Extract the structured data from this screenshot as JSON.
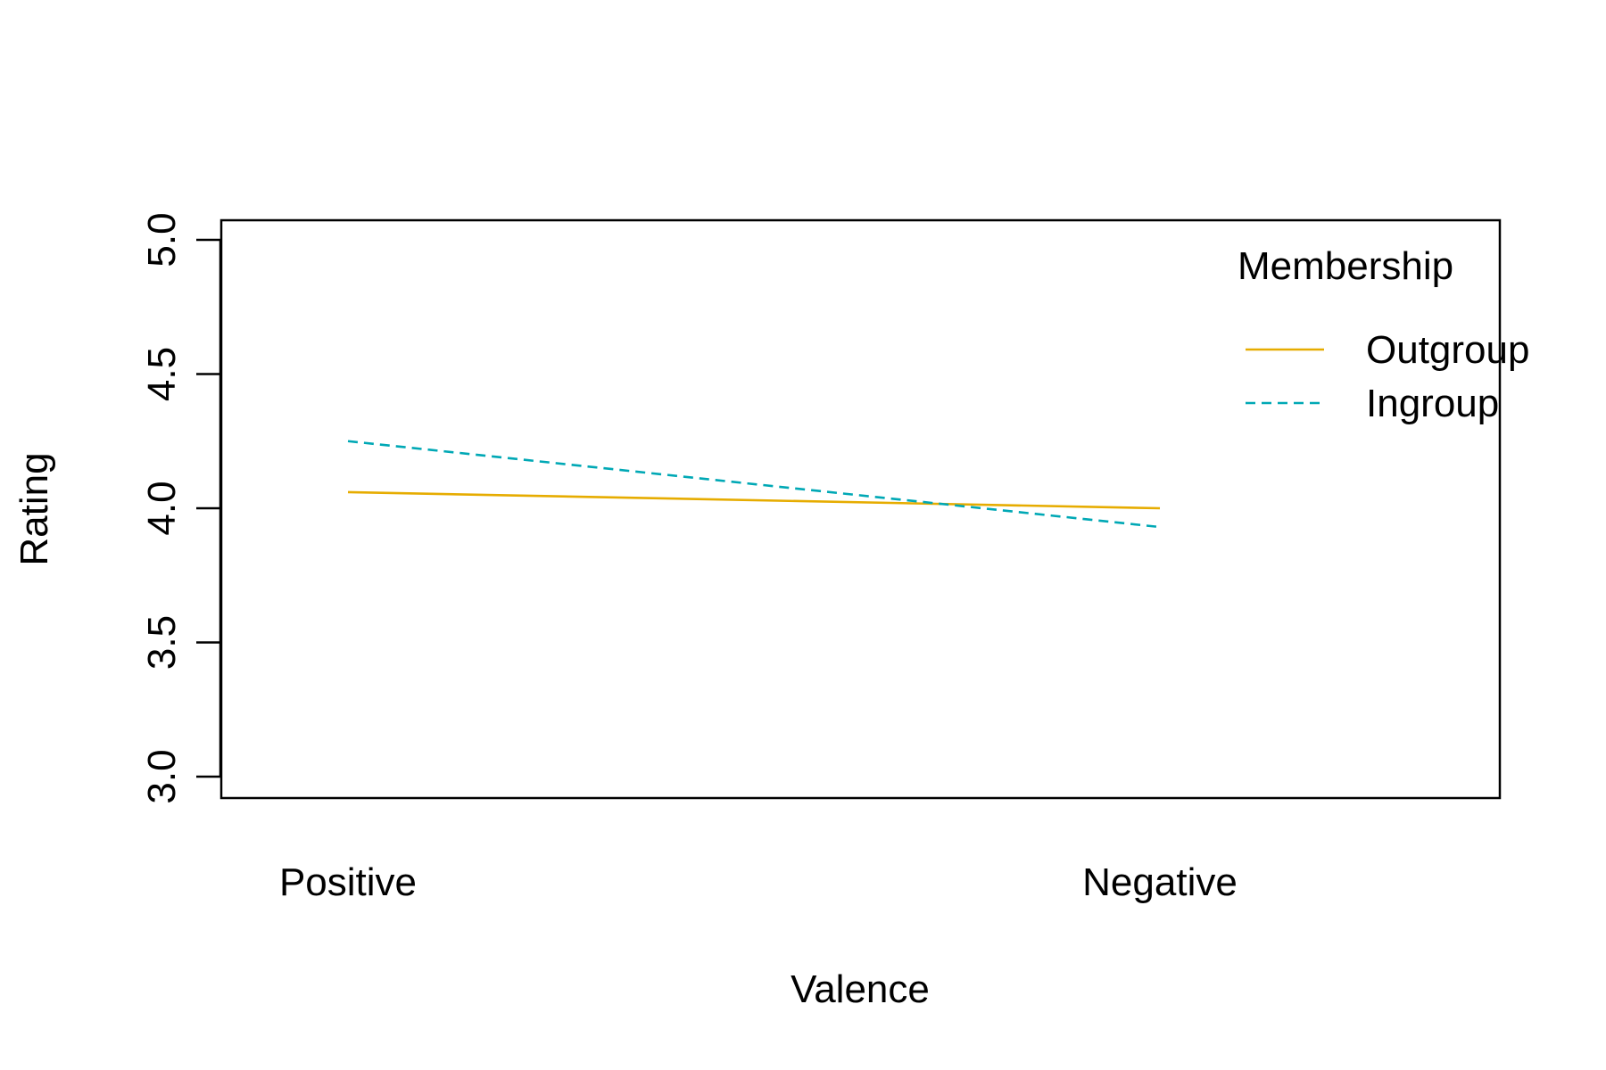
{
  "chart_data": {
    "type": "line",
    "xlabel": "Valence",
    "ylabel": "Rating",
    "categories": [
      "Positive",
      "Negative"
    ],
    "ylim": [
      3.0,
      5.0
    ],
    "yticks": [
      "3.0",
      "3.5",
      "4.0",
      "4.5",
      "5.0"
    ],
    "grid": false,
    "legend": {
      "title": "Membership",
      "placement": "top-right"
    },
    "series": [
      {
        "name": "Outgroup",
        "values": [
          4.06,
          4.0
        ],
        "color": "#E6AC00",
        "line_style": "solid"
      },
      {
        "name": "Ingroup",
        "values": [
          4.25,
          3.93
        ],
        "color": "#00A8B5",
        "line_style": "dashed"
      }
    ]
  }
}
